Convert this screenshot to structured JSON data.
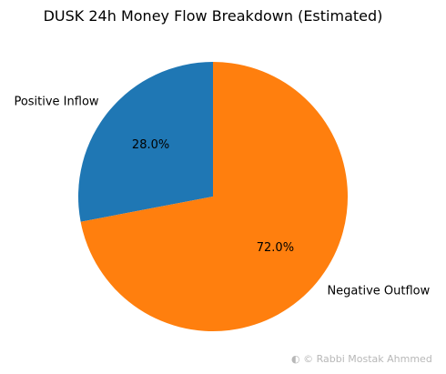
{
  "chart_data": {
    "type": "pie",
    "title": "DUSK 24h Money Flow Breakdown (Estimated)",
    "categories": [
      "Positive Inflow",
      "Negative Outflow"
    ],
    "values": [
      28.0,
      72.0
    ],
    "percent_labels": [
      "28.0%",
      "72.0%"
    ],
    "colors": [
      "#1f77b4",
      "#ff7f0e"
    ],
    "start_angle_deg": 90,
    "direction": "counterclockwise",
    "legend": "none"
  },
  "watermark": {
    "text": "Rabbi Mostak Ahmmed"
  }
}
